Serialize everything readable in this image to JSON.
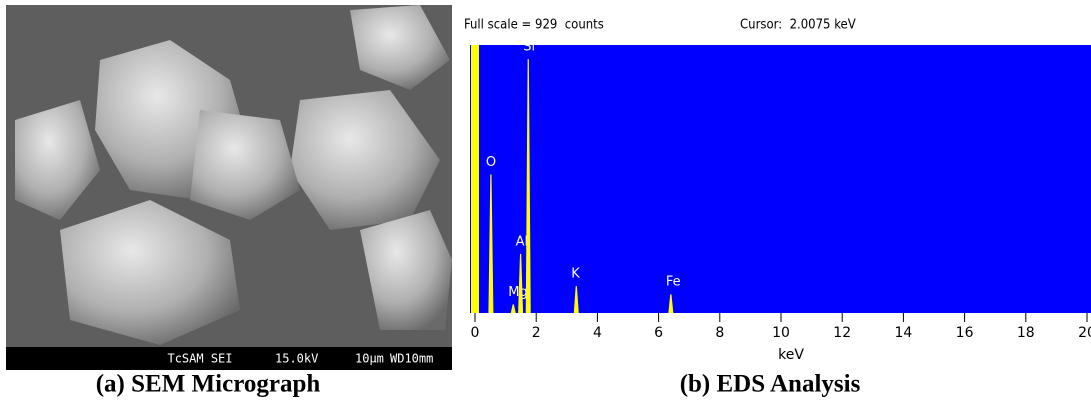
{
  "sem": {
    "labels": [
      "TcSAM SEI",
      "15.0kV",
      "10μm",
      "WD10mm"
    ]
  },
  "captions": [
    "(a) SEM Micrograph",
    "(b) EDS Analysis"
  ],
  "chart_data": {
    "type": "spectrum",
    "title": "Full scale = 929  counts",
    "cursor": "Cursor:  2.0075 keV",
    "xlabel": "keV",
    "x": [
      0.0,
      0.52,
      1.25,
      1.49,
      1.74,
      3.31,
      6.4
    ],
    "values": [
      929,
      480,
      30,
      205,
      880,
      93,
      65
    ],
    "peak_labels": [
      null,
      "O",
      "Mg",
      "Al",
      "Si",
      "K",
      "Fe"
    ],
    "color": "#ffff00",
    "background": "#0000ff",
    "xlim": [
      0,
      20
    ],
    "ylim": [
      0,
      929
    ],
    "xticks": [
      0,
      2,
      4,
      6,
      8,
      10,
      12,
      14,
      16,
      18,
      20
    ]
  }
}
